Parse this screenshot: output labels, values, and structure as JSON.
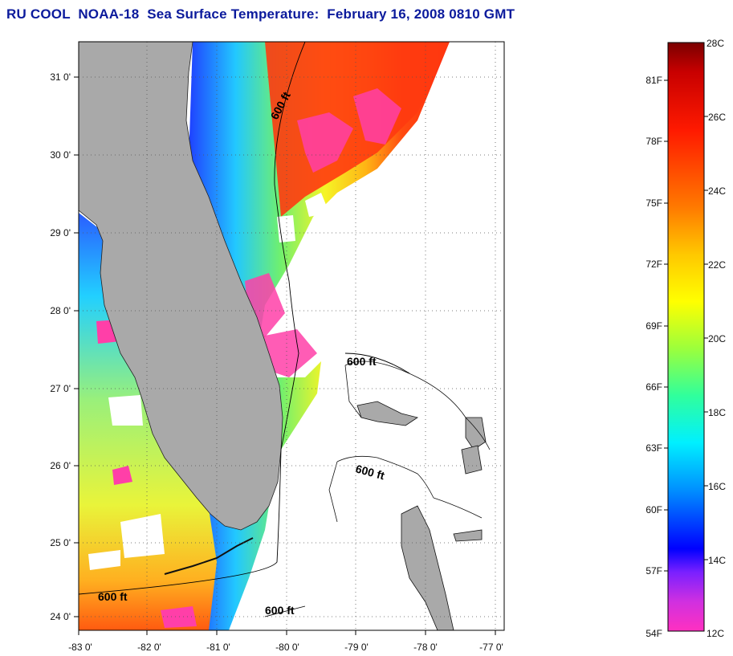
{
  "title": "RU COOL  NOAA-18  Sea Surface Temperature:  February 16, 2008 0810 GMT",
  "lat_labels": [
    "31 0'",
    "30 0'",
    "29 0'",
    "28 0'",
    "27 0'",
    "26 0'",
    "25 0'",
    "24 0'"
  ],
  "lon_labels": [
    "-83 0'",
    "-82 0'",
    "-81 0'",
    "-80 0'",
    "-79 0'",
    "-78 0'",
    "-77 0'"
  ],
  "contour_labels": [
    "600 ft",
    "600 ft",
    "600 ft",
    "600 ft",
    "600 ft"
  ],
  "colorbar": {
    "celsius_labels": [
      "28C",
      "26C",
      "24C",
      "22C",
      "20C",
      "18C",
      "16C",
      "14C",
      "12C"
    ],
    "fahrenheit_labels": [
      "81F",
      "78F",
      "75F",
      "72F",
      "69F",
      "66F",
      "63F",
      "60F",
      "57F",
      "54F"
    ]
  },
  "colors": {
    "land": "#a9a9a9",
    "title": "#0b1a9c",
    "cloud_pink": "#ff3fa8"
  }
}
